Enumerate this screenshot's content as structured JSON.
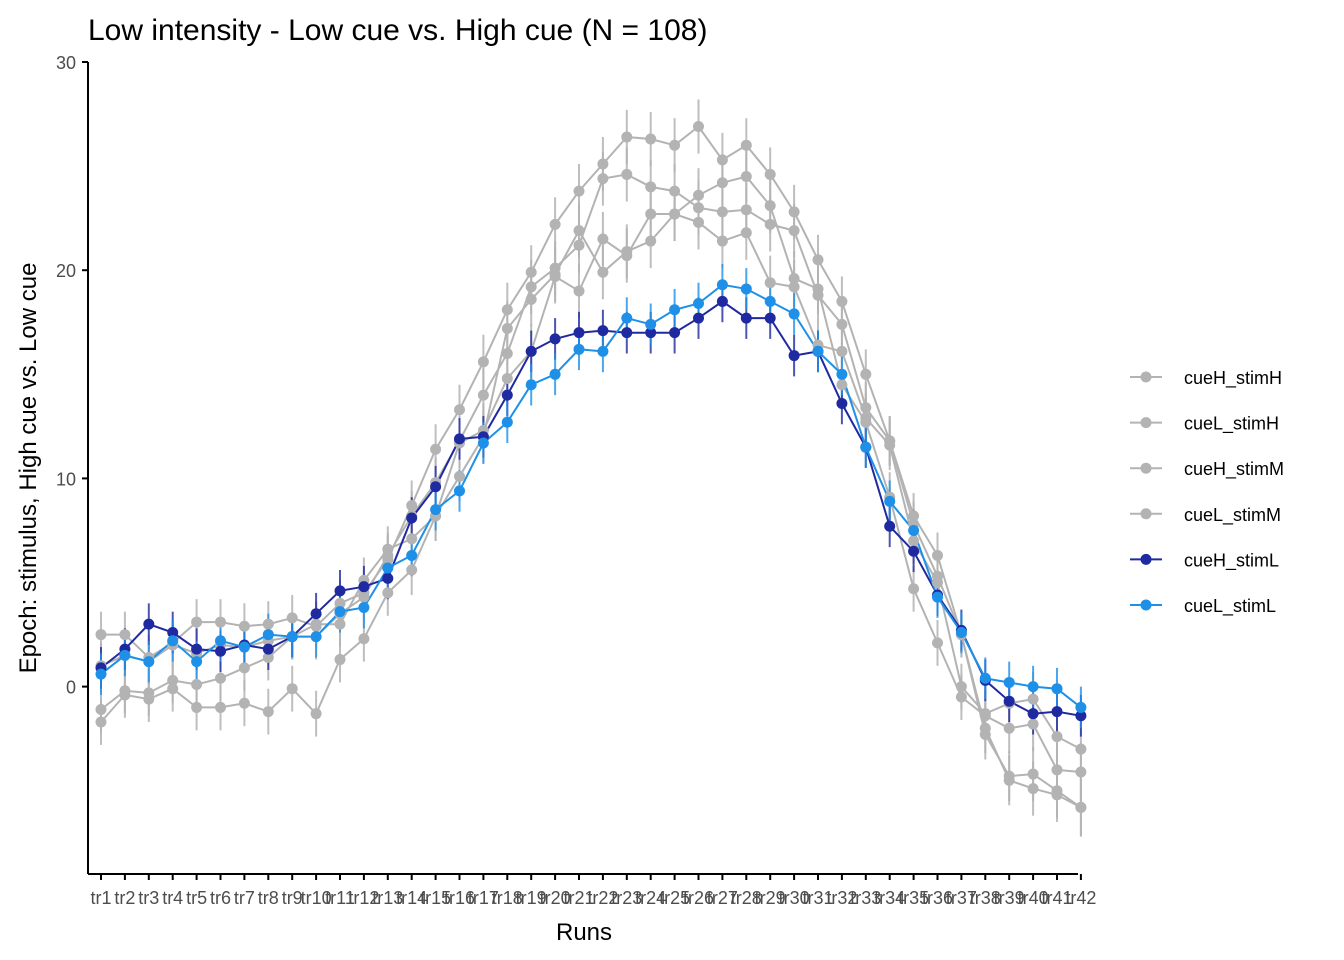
{
  "chart_data": {
    "type": "line",
    "title": "Low intensity - Low cue vs. High cue (N = 108)",
    "xlabel": "Runs",
    "ylabel": "Epoch: stimulus, High cue vs. Low cue",
    "ylim": [
      -9,
      30
    ],
    "yticks": [
      0,
      10,
      20,
      30
    ],
    "legend_position": "right",
    "categories": [
      "tr1",
      "tr2",
      "tr3",
      "tr4",
      "tr5",
      "tr6",
      "tr7",
      "tr8",
      "tr9",
      "tr10",
      "tr11",
      "tr12",
      "tr13",
      "tr14",
      "tr15",
      "tr16",
      "tr17",
      "tr18",
      "tr19",
      "tr20",
      "tr21",
      "tr22",
      "tr23",
      "tr24",
      "tr25",
      "tr26",
      "tr27",
      "tr28",
      "tr29",
      "tr30",
      "tr31",
      "tr32",
      "tr33",
      "tr34",
      "tr35",
      "tr36",
      "tr37",
      "tr38",
      "tr39",
      "tr40",
      "tr41",
      "tr42"
    ],
    "series": [
      {
        "name": "cueH_stimH",
        "color": "#b3b3b3",
        "values": [
          1.0,
          1.5,
          1.2,
          2.0,
          1.6,
          2.0,
          1.9,
          2.2,
          2.4,
          2.4,
          3.5,
          4.3,
          6.3,
          8.2,
          9.8,
          11.8,
          14.0,
          16.0,
          19.2,
          20.1,
          21.2,
          24.4,
          24.6,
          24.0,
          23.8,
          23.0,
          22.8,
          22.9,
          22.2,
          21.9,
          18.8,
          17.4,
          13.4,
          11.8,
          8.2,
          6.3,
          2.5,
          -2.3,
          -4.3,
          -4.2,
          -5.0,
          -5.8
        ],
        "errors": [
          1.1,
          1.1,
          1.1,
          1.1,
          1.1,
          1.1,
          1.1,
          1.1,
          1.1,
          1.1,
          1.1,
          1.1,
          1.1,
          1.2,
          1.2,
          1.2,
          1.3,
          1.3,
          1.3,
          1.3,
          1.3,
          1.3,
          1.3,
          1.3,
          1.3,
          1.3,
          1.3,
          1.3,
          1.3,
          1.3,
          1.2,
          1.2,
          1.2,
          1.2,
          1.1,
          1.1,
          1.1,
          1.2,
          1.2,
          1.3,
          1.3,
          1.4
        ]
      },
      {
        "name": "cueL_stimH",
        "color": "#b3b3b3",
        "values": [
          2.5,
          2.5,
          1.4,
          2.1,
          3.1,
          3.1,
          2.9,
          3.0,
          3.3,
          2.9,
          4.0,
          4.5,
          6.1,
          8.7,
          11.4,
          13.3,
          15.6,
          18.1,
          19.9,
          22.2,
          23.8,
          25.1,
          26.4,
          26.3,
          26.0,
          26.9,
          25.3,
          26.0,
          24.6,
          22.8,
          20.5,
          18.5,
          15.0,
          11.8,
          7.8,
          5.3,
          2.5,
          -2.0,
          -4.5,
          -4.9,
          -5.2,
          -5.8
        ],
        "errors": [
          1.1,
          1.1,
          1.1,
          1.1,
          1.1,
          1.1,
          1.1,
          1.1,
          1.1,
          1.1,
          1.1,
          1.1,
          1.1,
          1.2,
          1.2,
          1.2,
          1.3,
          1.3,
          1.3,
          1.3,
          1.3,
          1.3,
          1.3,
          1.3,
          1.3,
          1.3,
          1.3,
          1.3,
          1.3,
          1.3,
          1.2,
          1.2,
          1.2,
          1.2,
          1.1,
          1.1,
          1.1,
          1.2,
          1.2,
          1.3,
          1.3,
          1.4
        ]
      },
      {
        "name": "cueH_stimM",
        "color": "#b3b3b3",
        "values": [
          -1.1,
          -0.2,
          -0.3,
          0.3,
          0.1,
          0.4,
          0.9,
          1.4,
          2.4,
          3.0,
          3.0,
          5.1,
          6.6,
          7.1,
          8.2,
          11.7,
          12.3,
          14.8,
          16.1,
          19.7,
          19.0,
          21.5,
          20.7,
          22.7,
          22.7,
          22.3,
          21.4,
          21.8,
          19.4,
          19.2,
          16.4,
          16.1,
          12.9,
          11.6,
          7.0,
          5.0,
          0.0,
          -1.3,
          -0.8,
          -0.6,
          -2.4,
          -3.0
        ],
        "errors": [
          1.1,
          1.1,
          1.1,
          1.1,
          1.1,
          1.1,
          1.1,
          1.1,
          1.1,
          1.1,
          1.1,
          1.1,
          1.1,
          1.2,
          1.2,
          1.2,
          1.3,
          1.3,
          1.3,
          1.3,
          1.3,
          1.3,
          1.3,
          1.3,
          1.3,
          1.3,
          1.3,
          1.3,
          1.3,
          1.3,
          1.2,
          1.2,
          1.2,
          1.2,
          1.1,
          1.1,
          1.1,
          1.2,
          1.2,
          1.3,
          1.3,
          1.4
        ]
      },
      {
        "name": "cueL_stimM",
        "color": "#b3b3b3",
        "values": [
          -1.7,
          -0.4,
          -0.6,
          -0.1,
          -1.0,
          -1.0,
          -0.8,
          -1.2,
          -0.1,
          -1.3,
          1.3,
          2.3,
          4.5,
          5.6,
          8.2,
          10.1,
          12.0,
          17.2,
          18.6,
          19.8,
          21.9,
          19.9,
          20.9,
          21.4,
          22.7,
          23.6,
          24.2,
          24.5,
          23.1,
          19.6,
          19.1,
          14.5,
          12.7,
          9.1,
          4.7,
          2.1,
          -0.5,
          -1.4,
          -2.0,
          -1.8,
          -4.0,
          -4.1
        ],
        "errors": [
          1.1,
          1.1,
          1.1,
          1.1,
          1.1,
          1.1,
          1.1,
          1.1,
          1.1,
          1.1,
          1.1,
          1.1,
          1.1,
          1.2,
          1.2,
          1.2,
          1.3,
          1.3,
          1.3,
          1.3,
          1.3,
          1.3,
          1.3,
          1.3,
          1.3,
          1.3,
          1.3,
          1.3,
          1.3,
          1.3,
          1.2,
          1.2,
          1.2,
          1.2,
          1.1,
          1.1,
          1.1,
          1.2,
          1.2,
          1.3,
          1.3,
          1.4
        ]
      },
      {
        "name": "cueH_stimL",
        "color": "#1f2aa0",
        "values": [
          0.9,
          1.8,
          3.0,
          2.6,
          1.8,
          1.7,
          2.0,
          1.8,
          2.4,
          3.5,
          4.6,
          4.8,
          5.2,
          8.1,
          9.6,
          11.9,
          12.0,
          14.0,
          16.1,
          16.7,
          17.0,
          17.1,
          17.0,
          17.0,
          17.0,
          17.7,
          18.5,
          17.7,
          17.7,
          15.9,
          16.1,
          13.6,
          11.5,
          7.7,
          6.5,
          4.4,
          2.7,
          0.3,
          -0.7,
          -1.3,
          -1.2,
          -1.4
        ],
        "errors": [
          1.0,
          1.0,
          1.0,
          1.0,
          1.0,
          1.0,
          1.0,
          1.0,
          1.0,
          1.0,
          1.0,
          1.0,
          1.0,
          1.0,
          1.0,
          1.0,
          1.0,
          1.0,
          1.0,
          1.0,
          1.0,
          1.0,
          1.0,
          1.0,
          1.0,
          1.0,
          1.0,
          1.0,
          1.0,
          1.0,
          1.0,
          1.0,
          1.0,
          1.0,
          1.0,
          1.0,
          1.0,
          1.0,
          1.0,
          1.0,
          1.0,
          1.0
        ]
      },
      {
        "name": "cueL_stimL",
        "color": "#1e90e8",
        "values": [
          0.6,
          1.5,
          1.2,
          2.2,
          1.2,
          2.2,
          1.9,
          2.5,
          2.4,
          2.4,
          3.6,
          3.8,
          5.7,
          6.3,
          8.5,
          9.4,
          11.7,
          12.7,
          14.5,
          15.0,
          16.2,
          16.1,
          17.7,
          17.4,
          18.1,
          18.4,
          19.3,
          19.1,
          18.5,
          17.9,
          16.1,
          15.0,
          11.5,
          8.9,
          7.5,
          4.3,
          2.6,
          0.4,
          0.2,
          0.0,
          -0.1,
          -1.0
        ],
        "errors": [
          1.0,
          1.0,
          1.0,
          1.0,
          1.0,
          1.0,
          1.0,
          1.0,
          1.0,
          1.0,
          1.0,
          1.0,
          1.0,
          1.0,
          1.0,
          1.0,
          1.0,
          1.0,
          1.0,
          1.0,
          1.0,
          1.0,
          1.0,
          1.0,
          1.0,
          1.0,
          1.0,
          1.0,
          1.0,
          1.0,
          1.0,
          1.0,
          1.0,
          1.0,
          1.0,
          1.0,
          1.0,
          1.0,
          1.0,
          1.0,
          1.0,
          1.0
        ]
      }
    ]
  }
}
